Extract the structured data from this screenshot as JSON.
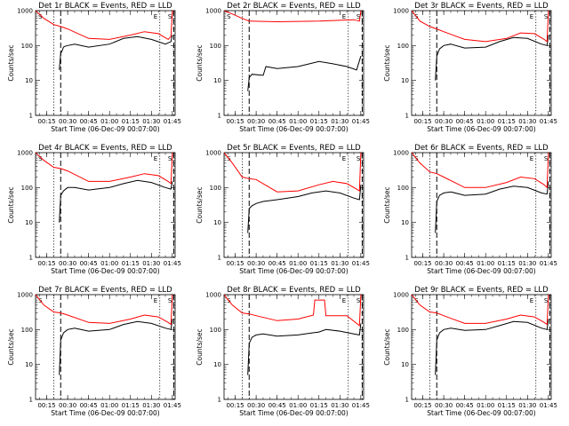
{
  "figure": {
    "ylabel": "Counts/sec",
    "xlabel": "Start Time (06-Dec-09 00:07:00)",
    "xticks": [
      "00:15",
      "00:30",
      "00:45",
      "01:00",
      "01:15",
      "01:30",
      "01:45"
    ],
    "ylog_ticks": [
      "1",
      "10",
      "100",
      "1000"
    ],
    "colors": {
      "events": "#000000",
      "lld": "#ff0000",
      "axes": "#000000"
    }
  },
  "chart_data": [
    {
      "type": "line",
      "title": "Det 1r BLACK = Events, RED = LLD",
      "xlabel": "Start Time (06-Dec-09 00:07:00)",
      "ylabel": "Counts/sec",
      "xlim": [
        "00:07",
        "01:47"
      ],
      "ylim": [
        1,
        1000
      ],
      "yscale": "log",
      "markers": {
        "dotted": [
          "00:20",
          "01:36"
        ],
        "dashed": [
          "00:25",
          "01:46"
        ],
        "labels": {
          "S": "00:09",
          "E": "01:36",
          "S2": "01:45"
        }
      },
      "series": [
        {
          "name": "Events",
          "color": "#000000",
          "x": [
            "00:24",
            "00:25",
            "00:26",
            "00:27",
            "00:28",
            "00:30",
            "00:35",
            "00:45",
            "01:00",
            "01:10",
            "01:20",
            "01:30",
            "01:40",
            "01:44",
            "01:45"
          ],
          "y": [
            20,
            60,
            70,
            90,
            95,
            100,
            110,
            90,
            110,
            160,
            180,
            150,
            110,
            130,
            200
          ]
        },
        {
          "name": "LLD",
          "color": "#ff0000",
          "x": [
            "00:07",
            "00:13",
            "00:20",
            "00:25",
            "00:30",
            "00:45",
            "01:00",
            "01:15",
            "01:25",
            "01:35",
            "01:42",
            "01:44",
            "01:45",
            "01:46"
          ],
          "y": [
            1000,
            600,
            400,
            350,
            300,
            160,
            150,
            200,
            250,
            220,
            150,
            180,
            1000,
            1000
          ]
        }
      ]
    },
    {
      "type": "line",
      "title": "Det 2r BLACK = Events, RED = LLD",
      "xlabel": "Start Time (06-Dec-09 00:07:00)",
      "ylabel": "Counts/sec",
      "xlim": [
        "00:07",
        "01:47"
      ],
      "ylim": [
        1,
        1000
      ],
      "yscale": "log",
      "markers": {
        "dotted": [
          "00:20",
          "01:36"
        ],
        "dashed": [
          "00:25",
          "01:46"
        ],
        "labels": {
          "S": "00:09",
          "E": "01:36",
          "S2": "01:45"
        }
      },
      "series": [
        {
          "name": "Events",
          "color": "#000000",
          "x": [
            "00:24",
            "00:25",
            "00:27",
            "00:35",
            "00:37",
            "00:45",
            "01:00",
            "01:15",
            "01:25",
            "01:35",
            "01:42",
            "01:45"
          ],
          "y": [
            5,
            12,
            15,
            14,
            25,
            22,
            25,
            35,
            30,
            25,
            20,
            50
          ]
        },
        {
          "name": "LLD",
          "color": "#ff0000",
          "x": [
            "00:07",
            "00:13",
            "00:20",
            "00:25",
            "00:45",
            "01:15",
            "01:40",
            "01:44",
            "01:45"
          ],
          "y": [
            1000,
            800,
            600,
            500,
            480,
            500,
            550,
            500,
            1000
          ]
        }
      ]
    },
    {
      "type": "line",
      "title": "Det 3r BLACK = Events, RED = LLD",
      "xlabel": "Start Time (06-Dec-09 00:07:00)",
      "ylabel": "Counts/sec",
      "xlim": [
        "00:07",
        "01:47"
      ],
      "ylim": [
        1,
        1000
      ],
      "yscale": "log",
      "markers": {
        "dotted": [
          "00:20",
          "01:36"
        ],
        "dashed": [
          "00:25",
          "01:46"
        ],
        "labels": {
          "S": "00:09",
          "E": "01:36",
          "S2": "01:45"
        }
      },
      "series": [
        {
          "name": "Events",
          "color": "#000000",
          "x": [
            "00:24",
            "00:25",
            "00:27",
            "00:30",
            "00:35",
            "00:45",
            "01:00",
            "01:10",
            "01:20",
            "01:30",
            "01:40",
            "01:44",
            "01:45"
          ],
          "y": [
            10,
            50,
            80,
            100,
            110,
            85,
            90,
            130,
            170,
            160,
            110,
            100,
            200
          ]
        },
        {
          "name": "LLD",
          "color": "#ff0000",
          "x": [
            "00:07",
            "00:13",
            "00:20",
            "00:25",
            "00:30",
            "00:45",
            "01:00",
            "01:15",
            "01:25",
            "01:35",
            "01:42",
            "01:44",
            "01:45"
          ],
          "y": [
            1000,
            500,
            350,
            300,
            250,
            150,
            130,
            160,
            230,
            220,
            150,
            130,
            1000
          ]
        }
      ]
    },
    {
      "type": "line",
      "title": "Det 4r BLACK = Events, RED = LLD",
      "xlabel": "Start Time (06-Dec-09 00:07:00)",
      "ylabel": "Counts/sec",
      "xlim": [
        "00:07",
        "01:47"
      ],
      "ylim": [
        1,
        1000
      ],
      "yscale": "log",
      "markers": {
        "dotted": [
          "00:20",
          "01:36"
        ],
        "dashed": [
          "00:25",
          "01:46"
        ],
        "labels": {
          "S": "00:09",
          "E": "01:36",
          "S2": "01:45"
        }
      },
      "series": [
        {
          "name": "Events",
          "color": "#000000",
          "x": [
            "00:24",
            "00:25",
            "00:27",
            "00:30",
            "00:35",
            "00:45",
            "01:00",
            "01:10",
            "01:20",
            "01:30",
            "01:40",
            "01:44",
            "01:45"
          ],
          "y": [
            10,
            60,
            80,
            100,
            100,
            85,
            100,
            130,
            160,
            140,
            100,
            90,
            150
          ]
        },
        {
          "name": "LLD",
          "color": "#ff0000",
          "x": [
            "00:07",
            "00:13",
            "00:20",
            "00:25",
            "00:30",
            "00:45",
            "01:00",
            "01:15",
            "01:25",
            "01:35",
            "01:42",
            "01:44",
            "01:45"
          ],
          "y": [
            1000,
            600,
            380,
            350,
            300,
            150,
            150,
            200,
            250,
            220,
            150,
            130,
            1000
          ]
        }
      ]
    },
    {
      "type": "line",
      "title": "Det 5r BLACK = Events, RED = LLD",
      "xlabel": "Start Time (06-Dec-09 00:07:00)",
      "ylabel": "Counts/sec",
      "xlim": [
        "00:07",
        "01:47"
      ],
      "ylim": [
        1,
        1000
      ],
      "yscale": "log",
      "markers": {
        "dotted": [
          "00:20",
          "01:36"
        ],
        "dashed": [
          "00:25",
          "01:46"
        ],
        "labels": {
          "S": "00:09",
          "E": "01:36",
          "S2": "01:45"
        }
      },
      "series": [
        {
          "name": "Events",
          "color": "#000000",
          "x": [
            "00:24",
            "00:25",
            "00:27",
            "00:30",
            "00:35",
            "00:45",
            "01:00",
            "01:10",
            "01:20",
            "01:30",
            "01:40",
            "01:44",
            "01:45"
          ],
          "y": [
            5,
            25,
            30,
            35,
            40,
            45,
            55,
            70,
            80,
            70,
            50,
            45,
            120
          ]
        },
        {
          "name": "LLD",
          "color": "#ff0000",
          "x": [
            "00:07",
            "00:13",
            "00:20",
            "00:25",
            "00:30",
            "00:45",
            "01:00",
            "01:15",
            "01:25",
            "01:35",
            "01:42",
            "01:44",
            "01:45"
          ],
          "y": [
            1000,
            500,
            200,
            180,
            170,
            75,
            80,
            120,
            150,
            130,
            90,
            80,
            1000
          ]
        }
      ]
    },
    {
      "type": "line",
      "title": "Det 6r BLACK = Events, RED = LLD",
      "xlabel": "Start Time (06-Dec-09 00:07:00)",
      "ylabel": "Counts/sec",
      "xlim": [
        "00:07",
        "01:47"
      ],
      "ylim": [
        1,
        1000
      ],
      "yscale": "log",
      "markers": {
        "dotted": [
          "00:20",
          "01:36"
        ],
        "dashed": [
          "00:25",
          "01:46"
        ],
        "labels": {
          "S": "00:09",
          "E": "01:36",
          "S2": "01:45"
        }
      },
      "series": [
        {
          "name": "Events",
          "color": "#000000",
          "x": [
            "00:24",
            "00:25",
            "00:27",
            "00:30",
            "00:35",
            "00:45",
            "01:00",
            "01:10",
            "01:20",
            "01:30",
            "01:40",
            "01:44",
            "01:45"
          ],
          "y": [
            5,
            40,
            60,
            70,
            75,
            60,
            65,
            90,
            110,
            100,
            70,
            65,
            150
          ]
        },
        {
          "name": "LLD",
          "color": "#ff0000",
          "x": [
            "00:07",
            "00:13",
            "00:20",
            "00:25",
            "00:30",
            "00:45",
            "01:00",
            "01:15",
            "01:25",
            "01:35",
            "01:42",
            "01:44",
            "01:45"
          ],
          "y": [
            1000,
            500,
            280,
            250,
            200,
            100,
            100,
            140,
            200,
            180,
            120,
            100,
            1000
          ]
        }
      ]
    },
    {
      "type": "line",
      "title": "Det 7r BLACK = Events, RED = LLD",
      "xlabel": "Start Time (06-Dec-09 00:07:00)",
      "ylabel": "Counts/sec",
      "xlim": [
        "00:07",
        "01:47"
      ],
      "ylim": [
        1,
        1000
      ],
      "yscale": "log",
      "markers": {
        "dotted": [
          "00:20",
          "01:36"
        ],
        "dashed": [
          "00:25",
          "01:46"
        ],
        "labels": {
          "S": "00:09",
          "E": "01:36",
          "S2": "01:45"
        }
      },
      "series": [
        {
          "name": "Events",
          "color": "#000000",
          "x": [
            "00:24",
            "00:25",
            "00:27",
            "00:30",
            "00:35",
            "00:45",
            "01:00",
            "01:10",
            "01:20",
            "01:30",
            "01:40",
            "01:44",
            "01:45"
          ],
          "y": [
            5,
            50,
            80,
            100,
            110,
            90,
            100,
            140,
            170,
            150,
            110,
            100,
            200
          ]
        },
        {
          "name": "LLD",
          "color": "#ff0000",
          "x": [
            "00:07",
            "00:13",
            "00:20",
            "00:25",
            "00:30",
            "00:45",
            "01:00",
            "01:15",
            "01:25",
            "01:35",
            "01:42",
            "01:44",
            "01:45"
          ],
          "y": [
            1000,
            500,
            320,
            300,
            260,
            160,
            150,
            200,
            260,
            230,
            160,
            140,
            1000
          ]
        }
      ]
    },
    {
      "type": "line",
      "title": "Det 8r BLACK = Events, RED = LLD",
      "xlabel": "Start Time (06-Dec-09 00:07:00)",
      "ylabel": "Counts/sec",
      "xlim": [
        "00:07",
        "01:47"
      ],
      "ylim": [
        1,
        1000
      ],
      "yscale": "log",
      "markers": {
        "dotted": [
          "00:20",
          "01:36"
        ],
        "dashed": [
          "00:25",
          "01:46"
        ],
        "labels": {
          "S": "00:09",
          "E": "01:36",
          "S2": "01:45"
        }
      },
      "series": [
        {
          "name": "Events",
          "color": "#000000",
          "x": [
            "00:24",
            "00:25",
            "00:27",
            "00:30",
            "00:35",
            "00:45",
            "01:00",
            "01:10",
            "01:15",
            "01:20",
            "01:30",
            "01:40",
            "01:44",
            "01:45"
          ],
          "y": [
            5,
            40,
            60,
            70,
            75,
            65,
            70,
            80,
            85,
            100,
            90,
            75,
            70,
            150
          ]
        },
        {
          "name": "LLD",
          "color": "#ff0000",
          "x": [
            "00:07",
            "00:13",
            "00:20",
            "00:25",
            "00:30",
            "00:45",
            "01:00",
            "01:11",
            "01:12",
            "01:19",
            "01:20",
            "01:35",
            "01:42",
            "01:44",
            "01:45"
          ],
          "y": [
            1000,
            500,
            300,
            280,
            250,
            180,
            200,
            260,
            700,
            700,
            250,
            250,
            150,
            130,
            1000
          ]
        }
      ]
    },
    {
      "type": "line",
      "title": "Det 9r BLACK = Events, RED = LLD",
      "xlabel": "Start Time (06-Dec-09 00:07:00)",
      "ylabel": "Counts/sec",
      "xlim": [
        "00:07",
        "01:47"
      ],
      "ylim": [
        1,
        1000
      ],
      "yscale": "log",
      "markers": {
        "dotted": [
          "00:20",
          "01:36"
        ],
        "dashed": [
          "00:25",
          "01:46"
        ],
        "labels": {
          "S": "00:09",
          "E": "01:36",
          "S2": "01:45"
        }
      },
      "series": [
        {
          "name": "Events",
          "color": "#000000",
          "x": [
            "00:24",
            "00:25",
            "00:27",
            "00:30",
            "00:35",
            "00:45",
            "01:00",
            "01:10",
            "01:20",
            "01:30",
            "01:40",
            "01:44",
            "01:45"
          ],
          "y": [
            5,
            50,
            80,
            100,
            110,
            95,
            100,
            130,
            170,
            160,
            110,
            100,
            200
          ]
        },
        {
          "name": "LLD",
          "color": "#ff0000",
          "x": [
            "00:07",
            "00:13",
            "00:20",
            "00:25",
            "00:30",
            "00:45",
            "01:00",
            "01:15",
            "01:25",
            "01:35",
            "01:42",
            "01:44",
            "01:45"
          ],
          "y": [
            1000,
            500,
            320,
            300,
            250,
            150,
            150,
            200,
            260,
            230,
            160,
            140,
            1000
          ]
        }
      ]
    }
  ]
}
